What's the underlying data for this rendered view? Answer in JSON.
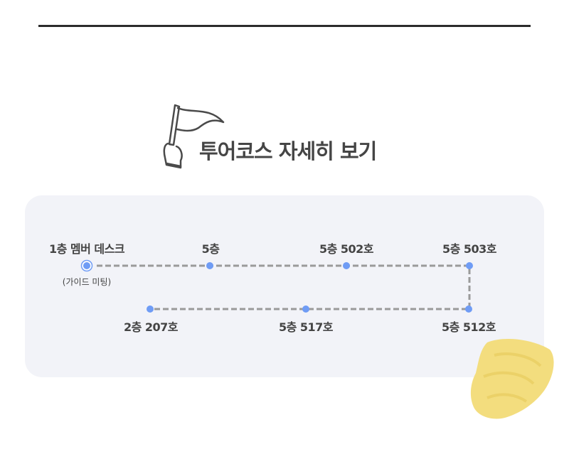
{
  "header": {
    "title": "투어코스 자세히 보기",
    "icon": "flag-hand-icon"
  },
  "route": {
    "line_color": "#9a9a9a",
    "dot_color": "#6f9cf5",
    "stops": [
      {
        "label": "1층 멤버 데스크",
        "note": "(가이드 미팅)",
        "start": true
      },
      {
        "label": "5층"
      },
      {
        "label": "5층 502호"
      },
      {
        "label": "5층 503호"
      },
      {
        "label": "5층 512호"
      },
      {
        "label": "5층 517호"
      },
      {
        "label": "2층 207호"
      }
    ]
  },
  "decoration": {
    "paint_color": "#f3dd7e"
  }
}
